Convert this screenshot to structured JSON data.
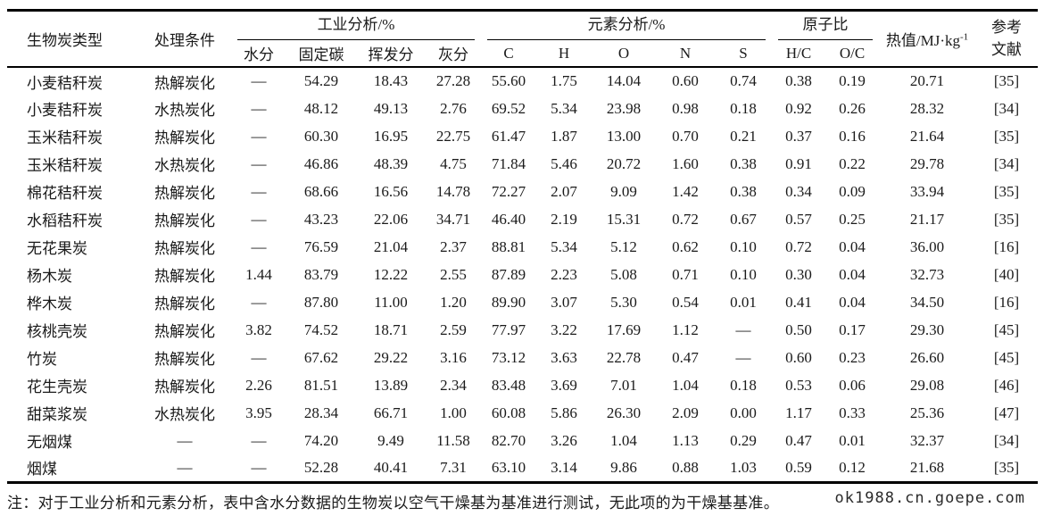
{
  "table": {
    "header": {
      "col_biochar_type": "生物炭类型",
      "col_treatment": "处理条件",
      "group_proximate": "工业分析/%",
      "group_elemental": "元素分析/%",
      "group_atomic_ratio": "原子比",
      "col_heating_value_base": "热值/MJ·kg",
      "col_heating_value_exp": "-1",
      "col_reference": "参考\n文献",
      "sub_proximate": [
        "水分",
        "固定碳",
        "挥发分",
        "灰分"
      ],
      "sub_elemental": [
        "C",
        "H",
        "O",
        "N",
        "S"
      ],
      "sub_atomic": [
        "H/C",
        "O/C"
      ]
    },
    "rows": [
      [
        "小麦秸秆炭",
        "热解炭化",
        "—",
        "54.29",
        "18.43",
        "27.28",
        "55.60",
        "1.75",
        "14.04",
        "0.60",
        "0.74",
        "0.38",
        "0.19",
        "20.71",
        "[35]"
      ],
      [
        "小麦秸秆炭",
        "水热炭化",
        "—",
        "48.12",
        "49.13",
        "2.76",
        "69.52",
        "5.34",
        "23.98",
        "0.98",
        "0.18",
        "0.92",
        "0.26",
        "28.32",
        "[34]"
      ],
      [
        "玉米秸秆炭",
        "热解炭化",
        "—",
        "60.30",
        "16.95",
        "22.75",
        "61.47",
        "1.87",
        "13.00",
        "0.70",
        "0.21",
        "0.37",
        "0.16",
        "21.64",
        "[35]"
      ],
      [
        "玉米秸秆炭",
        "水热炭化",
        "—",
        "46.86",
        "48.39",
        "4.75",
        "71.84",
        "5.46",
        "20.72",
        "1.60",
        "0.38",
        "0.91",
        "0.22",
        "29.78",
        "[34]"
      ],
      [
        "棉花秸秆炭",
        "热解炭化",
        "—",
        "68.66",
        "16.56",
        "14.78",
        "72.27",
        "2.07",
        "9.09",
        "1.42",
        "0.38",
        "0.34",
        "0.09",
        "33.94",
        "[35]"
      ],
      [
        "水稻秸秆炭",
        "热解炭化",
        "—",
        "43.23",
        "22.06",
        "34.71",
        "46.40",
        "2.19",
        "15.31",
        "0.72",
        "0.67",
        "0.57",
        "0.25",
        "21.17",
        "[35]"
      ],
      [
        "无花果炭",
        "热解炭化",
        "—",
        "76.59",
        "21.04",
        "2.37",
        "88.81",
        "5.34",
        "5.12",
        "0.62",
        "0.10",
        "0.72",
        "0.04",
        "36.00",
        "[16]"
      ],
      [
        "杨木炭",
        "热解炭化",
        "1.44",
        "83.79",
        "12.22",
        "2.55",
        "87.89",
        "2.23",
        "5.08",
        "0.71",
        "0.10",
        "0.30",
        "0.04",
        "32.73",
        "[40]"
      ],
      [
        "桦木炭",
        "热解炭化",
        "—",
        "87.80",
        "11.00",
        "1.20",
        "89.90",
        "3.07",
        "5.30",
        "0.54",
        "0.01",
        "0.41",
        "0.04",
        "34.50",
        "[16]"
      ],
      [
        "核桃壳炭",
        "热解炭化",
        "3.82",
        "74.52",
        "18.71",
        "2.59",
        "77.97",
        "3.22",
        "17.69",
        "1.12",
        "—",
        "0.50",
        "0.17",
        "29.30",
        "[45]"
      ],
      [
        "竹炭",
        "热解炭化",
        "—",
        "67.62",
        "29.22",
        "3.16",
        "73.12",
        "3.63",
        "22.78",
        "0.47",
        "—",
        "0.60",
        "0.23",
        "26.60",
        "[45]"
      ],
      [
        "花生壳炭",
        "热解炭化",
        "2.26",
        "81.51",
        "13.89",
        "2.34",
        "83.48",
        "3.69",
        "7.01",
        "1.04",
        "0.18",
        "0.53",
        "0.06",
        "29.08",
        "[46]"
      ],
      [
        "甜菜浆炭",
        "水热炭化",
        "3.95",
        "28.34",
        "66.71",
        "1.00",
        "60.08",
        "5.86",
        "26.30",
        "2.09",
        "0.00",
        "1.17",
        "0.33",
        "25.36",
        "[47]"
      ],
      [
        "无烟煤",
        "—",
        "—",
        "74.20",
        "9.49",
        "11.58",
        "82.70",
        "3.26",
        "1.04",
        "1.13",
        "0.29",
        "0.47",
        "0.01",
        "32.37",
        "[34]"
      ],
      [
        "烟煤",
        "—",
        "—",
        "52.28",
        "40.41",
        "7.31",
        "63.10",
        "3.14",
        "9.86",
        "0.88",
        "1.03",
        "0.59",
        "0.12",
        "21.68",
        "[35]"
      ]
    ]
  },
  "note": "注：对于工业分析和元素分析，表中含水分数据的生物炭以空气干燥基为基准进行测试，无此项的为干燥基基准。",
  "watermark": "ok1988.cn.goepe.com",
  "colors": {
    "text": "#1a1a1a",
    "rule": "#000000",
    "background": "#ffffff"
  }
}
